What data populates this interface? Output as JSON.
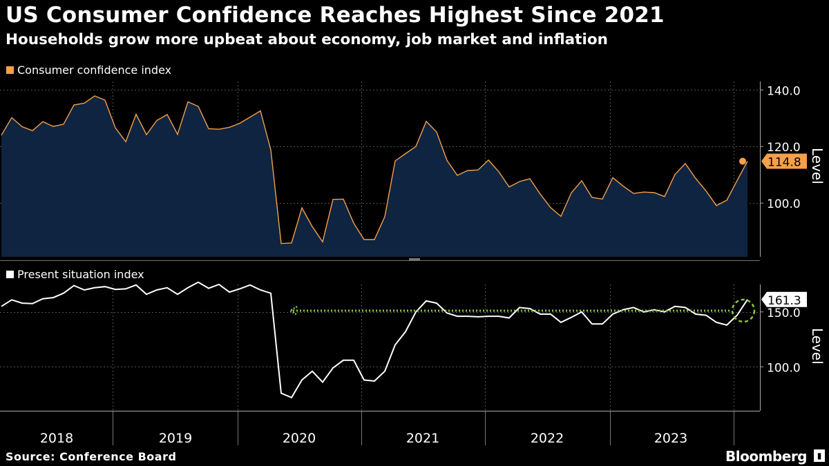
{
  "title": "US Consumer Confidence Reaches Highest Since 2021",
  "subtitle": "Households grow more upbeat about economy, job market and inflation",
  "source": "Source: Conference Board",
  "brand": "Bloomberg",
  "brand_icon": "terminal-icon",
  "colors": {
    "background": "#000000",
    "confidence_line": "#F5A04A",
    "confidence_fill": "#0F2440",
    "present_line": "#FFFFFF",
    "annotation": "#8CC63F",
    "grid": "#666666"
  },
  "chart_data": [
    {
      "type": "area",
      "title": "Consumer confidence index",
      "legend": "Consumer confidence index",
      "ylabel": "Level",
      "ylim": [
        81,
        143
      ],
      "yticks": [
        "100.0",
        "120.0",
        "140.0"
      ],
      "last_value_label": "114.8",
      "x_start": 2017.917,
      "x_step": 0.08333,
      "values": [
        124.0,
        130.2,
        127.0,
        125.6,
        128.8,
        127.1,
        127.9,
        134.7,
        135.3,
        137.9,
        136.4,
        126.6,
        121.7,
        131.4,
        124.2,
        129.2,
        131.3,
        124.3,
        135.8,
        134.2,
        126.3,
        126.1,
        126.8,
        128.2,
        130.4,
        132.6,
        118.8,
        85.7,
        85.9,
        98.3,
        91.7,
        86.3,
        101.3,
        101.4,
        92.9,
        87.1,
        87.1,
        95.2,
        114.9,
        117.5,
        120.0,
        128.9,
        125.1,
        115.1,
        109.8,
        111.5,
        111.7,
        115.2,
        111.1,
        105.7,
        107.6,
        108.6,
        103.2,
        98.4,
        95.3,
        103.6,
        107.9,
        102.0,
        101.4,
        109.0,
        106.0,
        103.4,
        103.9,
        103.7,
        102.3,
        110.1,
        114.0,
        108.7,
        104.3,
        99.1,
        101.0,
        108.0,
        114.8
      ]
    },
    {
      "type": "line",
      "title": "Present situation index",
      "legend": "Present situation index",
      "ylabel": "Level",
      "ylim": [
        60,
        175
      ],
      "yticks": [
        "100.0",
        "150.0"
      ],
      "last_value_label": "161.3",
      "x_start": 2017.917,
      "x_step": 0.08333,
      "values": [
        155.0,
        161.0,
        158.0,
        157.5,
        162.0,
        163.0,
        167.0,
        174.0,
        170.0,
        172.0,
        173.0,
        170.5,
        171.0,
        174.5,
        166.0,
        170.0,
        172.0,
        166.0,
        172.0,
        177.0,
        171.5,
        175.0,
        168.0,
        171.0,
        174.5,
        170.0,
        167.0,
        76.0,
        72.0,
        88.0,
        96.0,
        86.0,
        99.0,
        106.0,
        106.0,
        88.0,
        87.0,
        96.0,
        120.0,
        132.0,
        150.0,
        160.0,
        158.0,
        149.0,
        146.0,
        146.0,
        145.5,
        146.0,
        146.0,
        144.5,
        154.0,
        153.0,
        148.0,
        148.0,
        140.5,
        145.0,
        150.0,
        139.0,
        139.0,
        148.0,
        152.0,
        154.0,
        150.0,
        152.0,
        150.0,
        155.0,
        154.0,
        148.0,
        147.0,
        140.5,
        138.0,
        147.0,
        161.3
      ]
    }
  ],
  "x_axis": {
    "labels": [
      "2018",
      "2019",
      "2020",
      "2021",
      "2022",
      "2023"
    ],
    "label_positions": [
      2018.5,
      2019.5,
      2020.5,
      2021.5,
      2022.5,
      2023.5
    ]
  },
  "annotation": {
    "description": "dotted arrow from latest present-situation value back to 2021 level",
    "from_x": 2023.917,
    "to_x": 2019.917,
    "y_value": 158
  }
}
